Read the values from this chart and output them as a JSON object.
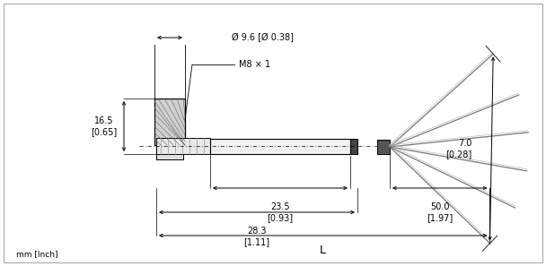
{
  "bg_color": "#ffffff",
  "line_color": "#000000",
  "fig_width": 6.08,
  "fig_height": 2.97,
  "font_size": 7.0,
  "small_font": 6.5,
  "labels": {
    "diameter": "Ø 9.6 [Ø 0.38]",
    "thread": "M8 × 1",
    "dim_165": "16.5\n[0.65]",
    "dim_235": "23.5\n[0.93]",
    "dim_283": "28.3\n[1.11]",
    "dim_70": "7.0\n[0.28]",
    "dim_500": "50.0\n[1.97]",
    "dim_L": "L",
    "footer": "mm [Inch]"
  }
}
